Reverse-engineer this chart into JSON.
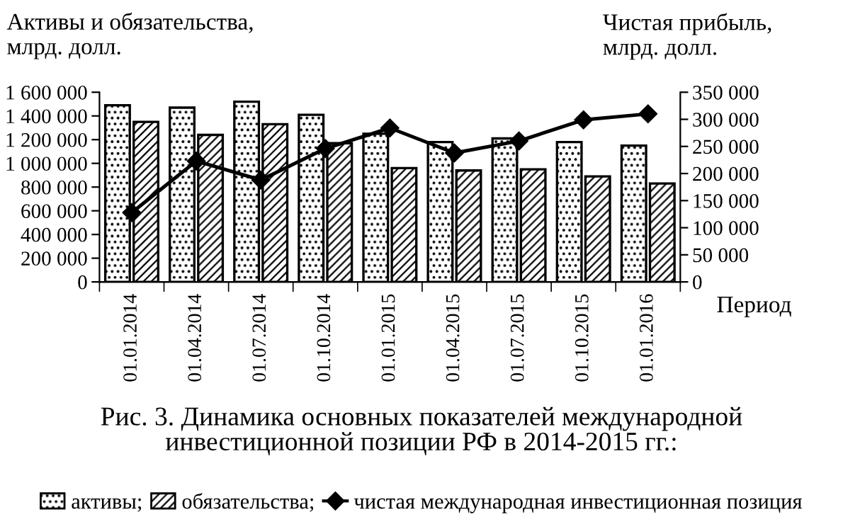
{
  "chart_data": {
    "type": "bar",
    "title": "Рис. 3. Динамика основных показателей международной\nинвестиционной позиции РФ в 2014-2015 гг.:",
    "ylabel": "Активы и обязательства,\nмлрд. долл.",
    "y2label": "Чистая прибыль,\nмлрд. долл.",
    "xlabel": "Период",
    "categories": [
      "01.01.2014",
      "01.04.2014",
      "01.07.2014",
      "01.10.2014",
      "01.01.2015",
      "01.04.2015",
      "01.07.2015",
      "01.10.2015",
      "01.01.2016"
    ],
    "series": [
      {
        "name": "активы;",
        "color": "#000000",
        "values": [
          1490000,
          1470000,
          1520000,
          1410000,
          1250000,
          1180000,
          1210000,
          1180000,
          1150000
        ]
      },
      {
        "name": "обязательства;",
        "color": "#000000",
        "values": [
          1350000,
          1240000,
          1330000,
          1170000,
          960000,
          940000,
          950000,
          890000,
          830000
        ]
      },
      {
        "name": "чистая международная инвестиционная позиция",
        "type": "line",
        "axis": "y2",
        "color": "#000000",
        "marker": "diamond",
        "line_style": "solid",
        "values": [
          128000,
          223000,
          188000,
          246000,
          284000,
          238000,
          260000,
          299000,
          310000
        ]
      }
    ],
    "ylim": [
      0,
      1600000
    ],
    "yticks": [
      0,
      {
        "value": 200000,
        "label": "200 000"
      },
      {
        "value": 400000,
        "label": "400 000"
      },
      {
        "value": 600000,
        "label": "600 000"
      },
      {
        "value": 800000,
        "label": "800 000"
      },
      {
        "value": 1000000,
        "label": "1 000 000"
      },
      {
        "value": 1200000,
        "label": "1 200 000"
      },
      {
        "value": 1400000,
        "label": "1 400 000"
      },
      {
        "value": 1600000,
        "label": "1 600 000"
      }
    ],
    "y2lim": [
      0,
      350000
    ],
    "y2ticks": [
      0,
      {
        "value": 50000,
        "label": "50 000"
      },
      {
        "value": 100000,
        "label": "100 000"
      },
      {
        "value": 150000,
        "label": "150 000"
      },
      {
        "value": 200000,
        "label": "200 000"
      },
      {
        "value": 250000,
        "label": "250 000"
      },
      {
        "value": 300000,
        "label": "300 000"
      },
      {
        "value": 350000,
        "label": "350 000"
      }
    ],
    "grid": false,
    "legend": "bottom"
  }
}
